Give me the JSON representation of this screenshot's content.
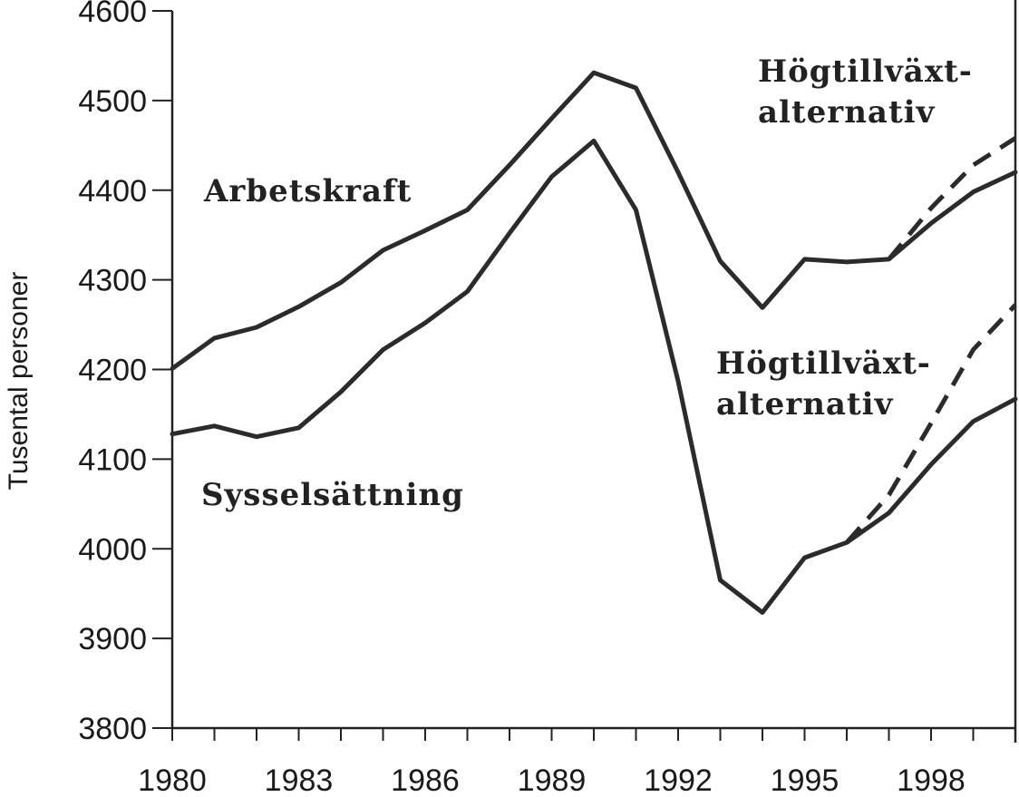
{
  "chart_data": {
    "type": "line",
    "title": "",
    "ylabel": "Tusental personer",
    "xlabel": "",
    "xlim": [
      1980,
      2000
    ],
    "ylim": [
      3800,
      4600
    ],
    "x_tick_labels": [
      "1980",
      "1983",
      "1986",
      "1989",
      "1992",
      "1995",
      "1998"
    ],
    "x_tick_values": [
      1980,
      1983,
      1986,
      1989,
      1992,
      1995,
      1998
    ],
    "x_minor_ticks": [
      1980,
      1981,
      1982,
      1983,
      1984,
      1985,
      1986,
      1987,
      1988,
      1989,
      1990,
      1991,
      1992,
      1993,
      1994,
      1995,
      1996,
      1997,
      1998,
      1999,
      2000
    ],
    "y_ticks": [
      3800,
      3900,
      4000,
      4100,
      4200,
      4300,
      4400,
      4500,
      4600
    ],
    "grid": false,
    "series": [
      {
        "name": "Arbetskraft",
        "style": "solid",
        "x": [
          1980,
          1981,
          1982,
          1983,
          1984,
          1985,
          1986,
          1987,
          1988,
          1989,
          1990,
          1991,
          1992,
          1993,
          1994,
          1995,
          1996,
          1997,
          1998,
          1999,
          2000
        ],
        "values": [
          4201,
          4235,
          4247,
          4270,
          4297,
          4333,
          4355,
          4378,
          4428,
          4480,
          4531,
          4514,
          4420,
          4321,
          4269,
          4323,
          4320,
          4323,
          4363,
          4398,
          4420
        ]
      },
      {
        "name": "Sysselsättning",
        "style": "solid",
        "x": [
          1980,
          1981,
          1982,
          1983,
          1984,
          1985,
          1986,
          1987,
          1988,
          1989,
          1990,
          1991,
          1992,
          1993,
          1994,
          1995,
          1996,
          1997,
          1998,
          1999,
          2000
        ],
        "values": [
          4128,
          4137,
          4125,
          4135,
          4175,
          4222,
          4252,
          4287,
          4352,
          4415,
          4455,
          4378,
          4187,
          3965,
          3929,
          3990,
          4007,
          4040,
          4094,
          4142,
          4167
        ]
      },
      {
        "name": "Högtillväxt-alternativ",
        "style": "dashed",
        "x": [
          1997,
          1998,
          1999,
          2000
        ],
        "values": [
          4323,
          4380,
          4428,
          4458
        ]
      },
      {
        "name": "Högtillväxt-alternativ",
        "style": "dashed",
        "x": [
          1996,
          1997,
          1998,
          1999,
          2000
        ],
        "values": [
          4007,
          4060,
          4140,
          4222,
          4272
        ]
      }
    ],
    "annotations": [
      {
        "text": "Arbetskraft"
      },
      {
        "text": "Sysselsättning"
      },
      {
        "text_line1": "Högtillväxt-",
        "text_line2": "alternativ"
      },
      {
        "text_line1": "Högtillväxt-",
        "text_line2": "alternativ"
      }
    ]
  }
}
